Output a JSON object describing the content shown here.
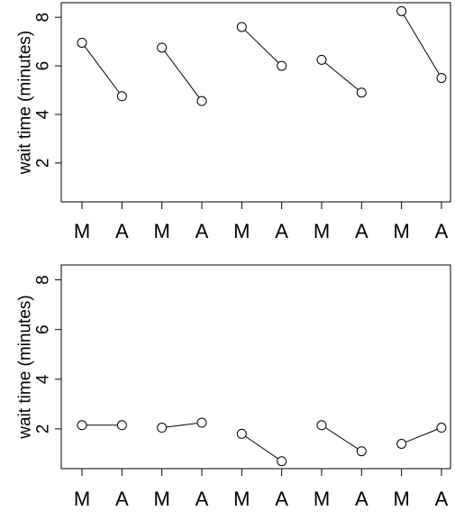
{
  "chart_data": [
    {
      "type": "line",
      "ylabel": "wait time (minutes)",
      "categories": [
        "M",
        "A",
        "M",
        "A",
        "M",
        "A",
        "M",
        "A",
        "M",
        "A"
      ],
      "ylim": [
        0.4,
        8.6
      ],
      "yticks": [
        2,
        4,
        6,
        8
      ],
      "pairs": [
        {
          "values": [
            6.95,
            4.75
          ]
        },
        {
          "values": [
            6.75,
            4.55
          ]
        },
        {
          "values": [
            7.6,
            6.0
          ]
        },
        {
          "values": [
            6.25,
            4.9
          ]
        },
        {
          "values": [
            8.25,
            5.5
          ]
        }
      ]
    },
    {
      "type": "line",
      "ylabel": "wait time (minutes)",
      "categories": [
        "M",
        "A",
        "M",
        "A",
        "M",
        "A",
        "M",
        "A",
        "M",
        "A"
      ],
      "ylim": [
        0.4,
        8.6
      ],
      "yticks": [
        2,
        4,
        6,
        8
      ],
      "pairs": [
        {
          "values": [
            2.15,
            2.15
          ]
        },
        {
          "values": [
            2.05,
            2.25
          ]
        },
        {
          "values": [
            1.8,
            0.7
          ]
        },
        {
          "values": [
            2.15,
            1.1
          ]
        },
        {
          "values": [
            1.4,
            2.05
          ]
        }
      ]
    }
  ]
}
